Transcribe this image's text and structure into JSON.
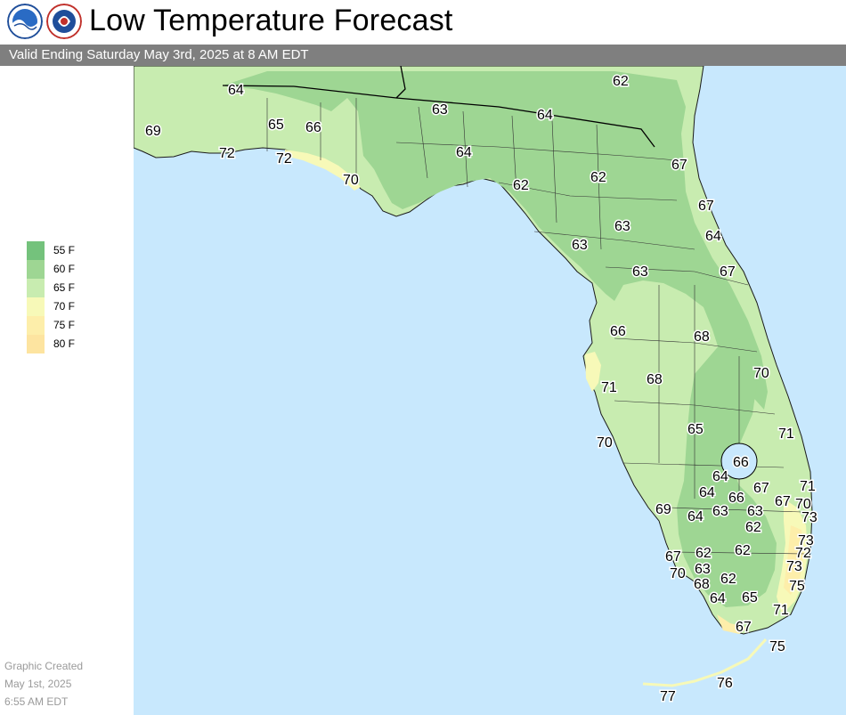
{
  "header": {
    "title": "Low Temperature Forecast",
    "subtitle": "Valid Ending Saturday May 3rd, 2025 at 8 AM EDT",
    "logos": [
      "noaa-logo",
      "nws-logo"
    ]
  },
  "legend": {
    "items": [
      {
        "label": "55 F",
        "color": "#74c27c"
      },
      {
        "label": "60 F",
        "color": "#9ed693"
      },
      {
        "label": "65 F",
        "color": "#c8ecb0"
      },
      {
        "label": "70 F",
        "color": "#f7f9b8"
      },
      {
        "label": "75 F",
        "color": "#fdeeaa"
      },
      {
        "label": "80 F",
        "color": "#fde4a0"
      }
    ]
  },
  "footer": {
    "line1": "Graphic Created",
    "line2": "May 1st, 2025",
    "line3": "6:55 AM EDT"
  },
  "colors": {
    "water": "#c8e8fd",
    "zone_60": "#9ed693",
    "zone_65": "#c8ecb0",
    "zone_70": "#f7f9b8",
    "zone_75": "#fdeeaa",
    "subbar": "#7f7f7f"
  },
  "map": {
    "temperatures": [
      "64",
      "62",
      "63",
      "64",
      "69",
      "72",
      "72",
      "65",
      "66",
      "70",
      "64",
      "62",
      "62",
      "67",
      "67",
      "63",
      "64",
      "63",
      "63",
      "67",
      "66",
      "68",
      "71",
      "68",
      "70",
      "70",
      "65",
      "71",
      "66",
      "64",
      "64",
      "66",
      "67",
      "71",
      "67",
      "70",
      "69",
      "64",
      "63",
      "63",
      "73",
      "62",
      "62",
      "73",
      "72",
      "67",
      "62",
      "63",
      "70",
      "68",
      "62",
      "73",
      "75",
      "64",
      "65",
      "71",
      "67",
      "75",
      "76",
      "77"
    ]
  }
}
